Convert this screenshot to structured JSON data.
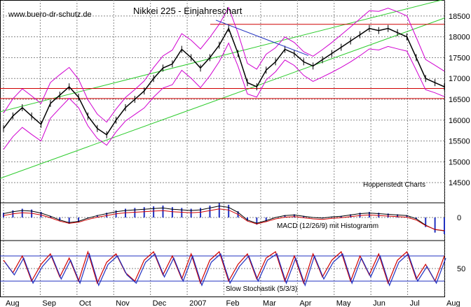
{
  "header": {
    "source": "www.buero-dr-schutz.de",
    "title": "Nikkei 225 - Einjahreschart"
  },
  "chart_data": {
    "type": "line",
    "title": "Nikkei 225 - Einjahreschart",
    "y_ticks": [
      14500,
      15000,
      15500,
      16000,
      16500,
      17000,
      17500,
      18000,
      18500
    ],
    "ylim": [
      14100,
      18800
    ],
    "months": [
      "Aug",
      "Sep",
      "Oct",
      "Nov",
      "Dec",
      "2007",
      "Feb",
      "Mar",
      "Apr",
      "May",
      "Jun",
      "Jul",
      "Aug"
    ],
    "price_weekly": [
      15800,
      16100,
      16300,
      16100,
      15900,
      16400,
      16600,
      16800,
      16550,
      16100,
      15800,
      15650,
      16000,
      16300,
      16500,
      16700,
      17000,
      17250,
      17350,
      17700,
      17500,
      17250,
      17500,
      17800,
      18200,
      17600,
      16900,
      16800,
      17200,
      17400,
      17700,
      17600,
      17400,
      17300,
      17450,
      17600,
      17750,
      17900,
      18050,
      18200,
      18150,
      18200,
      18100,
      18000,
      17500,
      17000,
      16900,
      16800
    ],
    "horizontal_lines": [
      18300,
      16760,
      16520
    ],
    "channel_upper": [
      16200,
      18900
    ],
    "channel_lower": [
      14600,
      18450
    ],
    "annotation": "Hoppenstedt Charts",
    "macd": {
      "label": "MACD (12/26/9) mit Histogramm",
      "zero": 0,
      "series": [
        60,
        90,
        110,
        100,
        70,
        20,
        -40,
        -80,
        -60,
        -10,
        30,
        60,
        90,
        110,
        120,
        130,
        140,
        150,
        130,
        120,
        110,
        120,
        150,
        180,
        160,
        80,
        -40,
        -90,
        -50,
        0,
        30,
        40,
        20,
        0,
        -10,
        10,
        20,
        40,
        60,
        70,
        60,
        50,
        40,
        30,
        -20,
        -120,
        -190,
        -210
      ]
    },
    "stochastic": {
      "label": "Slow Stochastik (5/3/3)",
      "tick": 50,
      "series": [
        70,
        40,
        80,
        20,
        60,
        85,
        30,
        75,
        20,
        90,
        15,
        65,
        85,
        40,
        20,
        70,
        90,
        35,
        80,
        25,
        85,
        15,
        70,
        90,
        20,
        60,
        85,
        25,
        75,
        90,
        20,
        80,
        15,
        85,
        30,
        70,
        90,
        20,
        80,
        35,
        85,
        15,
        70,
        90,
        25,
        60,
        20,
        80
      ]
    }
  }
}
